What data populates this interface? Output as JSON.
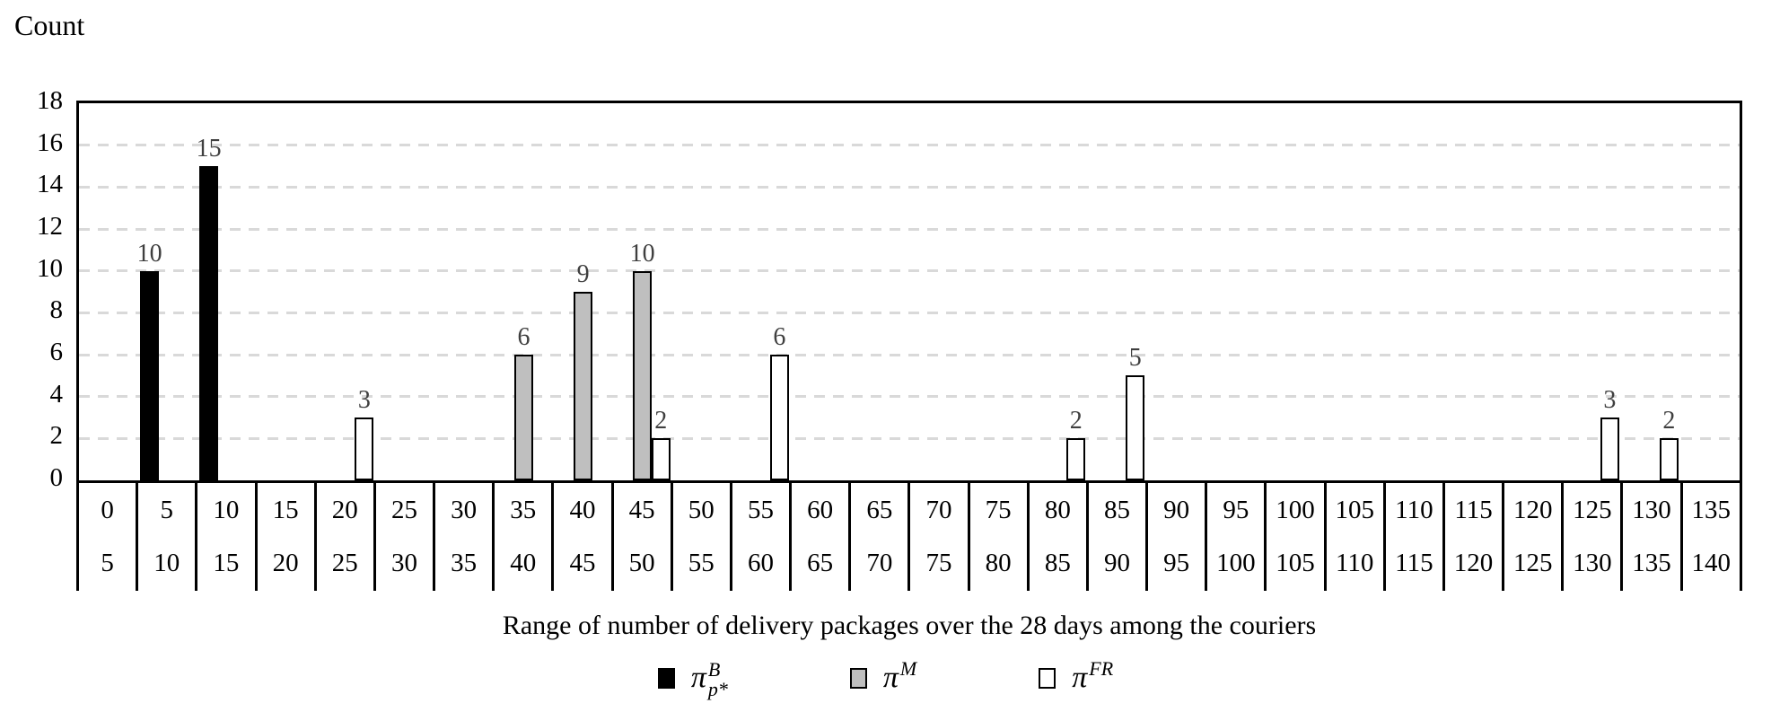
{
  "count_label": "Count",
  "x_axis_title": "Range of number of delivery packages over the 28 days among the couriers",
  "y_ticks": [
    "18",
    "16",
    "14",
    "12",
    "10",
    "8",
    "6",
    "4",
    "2",
    "0"
  ],
  "colors": {
    "frame": "#000000",
    "grid": "#d9d9d9",
    "bar_label": "#3f3f3f",
    "series_black": "#000000",
    "series_gray": "#bfbfbf",
    "series_white": "#ffffff"
  },
  "legend": [
    {
      "base": "π",
      "sup": "B",
      "sub": "p*",
      "fill": "#000000"
    },
    {
      "base": "π",
      "sup": "M",
      "sub": "",
      "fill": "#bfbfbf"
    },
    {
      "base": "π",
      "sup": "FR",
      "sub": "",
      "fill": "#ffffff"
    }
  ],
  "chart_data": {
    "type": "bar",
    "title": "",
    "ylabel": "Count",
    "xlabel": "Range of number of delivery packages over the 28 days among the couriers",
    "ylim": [
      0,
      18
    ],
    "ytick_step": 2,
    "grid": "horizontal-dashed",
    "legend_position": "bottom",
    "bin_size": 5,
    "categories_lower": [
      "0",
      "5",
      "10",
      "15",
      "20",
      "25",
      "30",
      "35",
      "40",
      "45",
      "50",
      "55",
      "60",
      "65",
      "70",
      "75",
      "80",
      "85",
      "90",
      "95",
      "100",
      "105",
      "110",
      "115",
      "120",
      "125",
      "130",
      "135"
    ],
    "categories_upper": [
      "5",
      "10",
      "15",
      "20",
      "25",
      "30",
      "35",
      "40",
      "45",
      "50",
      "55",
      "60",
      "65",
      "70",
      "75",
      "80",
      "85",
      "90",
      "95",
      "100",
      "105",
      "110",
      "115",
      "120",
      "125",
      "130",
      "135",
      "140"
    ],
    "series": [
      {
        "name": "π_p*^B",
        "fill": "#000000",
        "values": [
          0,
          10,
          15,
          0,
          0,
          0,
          0,
          0,
          0,
          0,
          0,
          0,
          0,
          0,
          0,
          0,
          0,
          0,
          0,
          0,
          0,
          0,
          0,
          0,
          0,
          0,
          0,
          0
        ]
      },
      {
        "name": "π^M",
        "fill": "#bfbfbf",
        "values": [
          0,
          0,
          0,
          0,
          0,
          0,
          0,
          6,
          9,
          10,
          0,
          0,
          0,
          0,
          0,
          0,
          0,
          0,
          0,
          0,
          0,
          0,
          0,
          0,
          0,
          0,
          0,
          0
        ]
      },
      {
        "name": "π^FR",
        "fill": "#ffffff",
        "values": [
          0,
          0,
          0,
          0,
          3,
          0,
          0,
          0,
          0,
          2,
          0,
          6,
          0,
          0,
          0,
          0,
          2,
          5,
          0,
          0,
          0,
          0,
          0,
          0,
          0,
          3,
          2,
          0
        ]
      }
    ]
  }
}
